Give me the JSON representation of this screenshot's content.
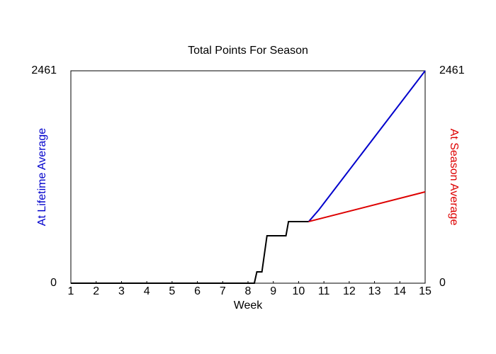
{
  "chart_data": {
    "type": "line",
    "title": "Total Points For Season",
    "xlabel": "Week",
    "ylabel": "At Lifetime Average",
    "y2label": "At Season Average",
    "xlim": [
      1,
      15
    ],
    "xticks": [
      1,
      2,
      3,
      4,
      5,
      6,
      7,
      8,
      9,
      10,
      11,
      12,
      13,
      14,
      15
    ],
    "ylim": [
      0,
      2461
    ],
    "yticks": [
      0,
      2461
    ],
    "y2lim": [
      0,
      2461
    ],
    "y2ticks": [
      0,
      2461
    ],
    "ylabel_color": "#0000cc",
    "y2label_color": "#dd0000",
    "series": [
      {
        "color": "#000000",
        "x": [
          1,
          8.25,
          8.35,
          8.55,
          8.75,
          9.5,
          9.6,
          10.4
        ],
        "values": [
          0,
          0,
          131,
          131,
          550,
          550,
          714,
          714
        ]
      },
      {
        "color": "#0000cc",
        "x": [
          10.4,
          10.8,
          15
        ],
        "values": [
          714,
          850,
          2461
        ]
      },
      {
        "color": "#dd0000",
        "axis": "y2",
        "x": [
          10.4,
          15
        ],
        "values": [
          714,
          1058
        ]
      }
    ]
  }
}
